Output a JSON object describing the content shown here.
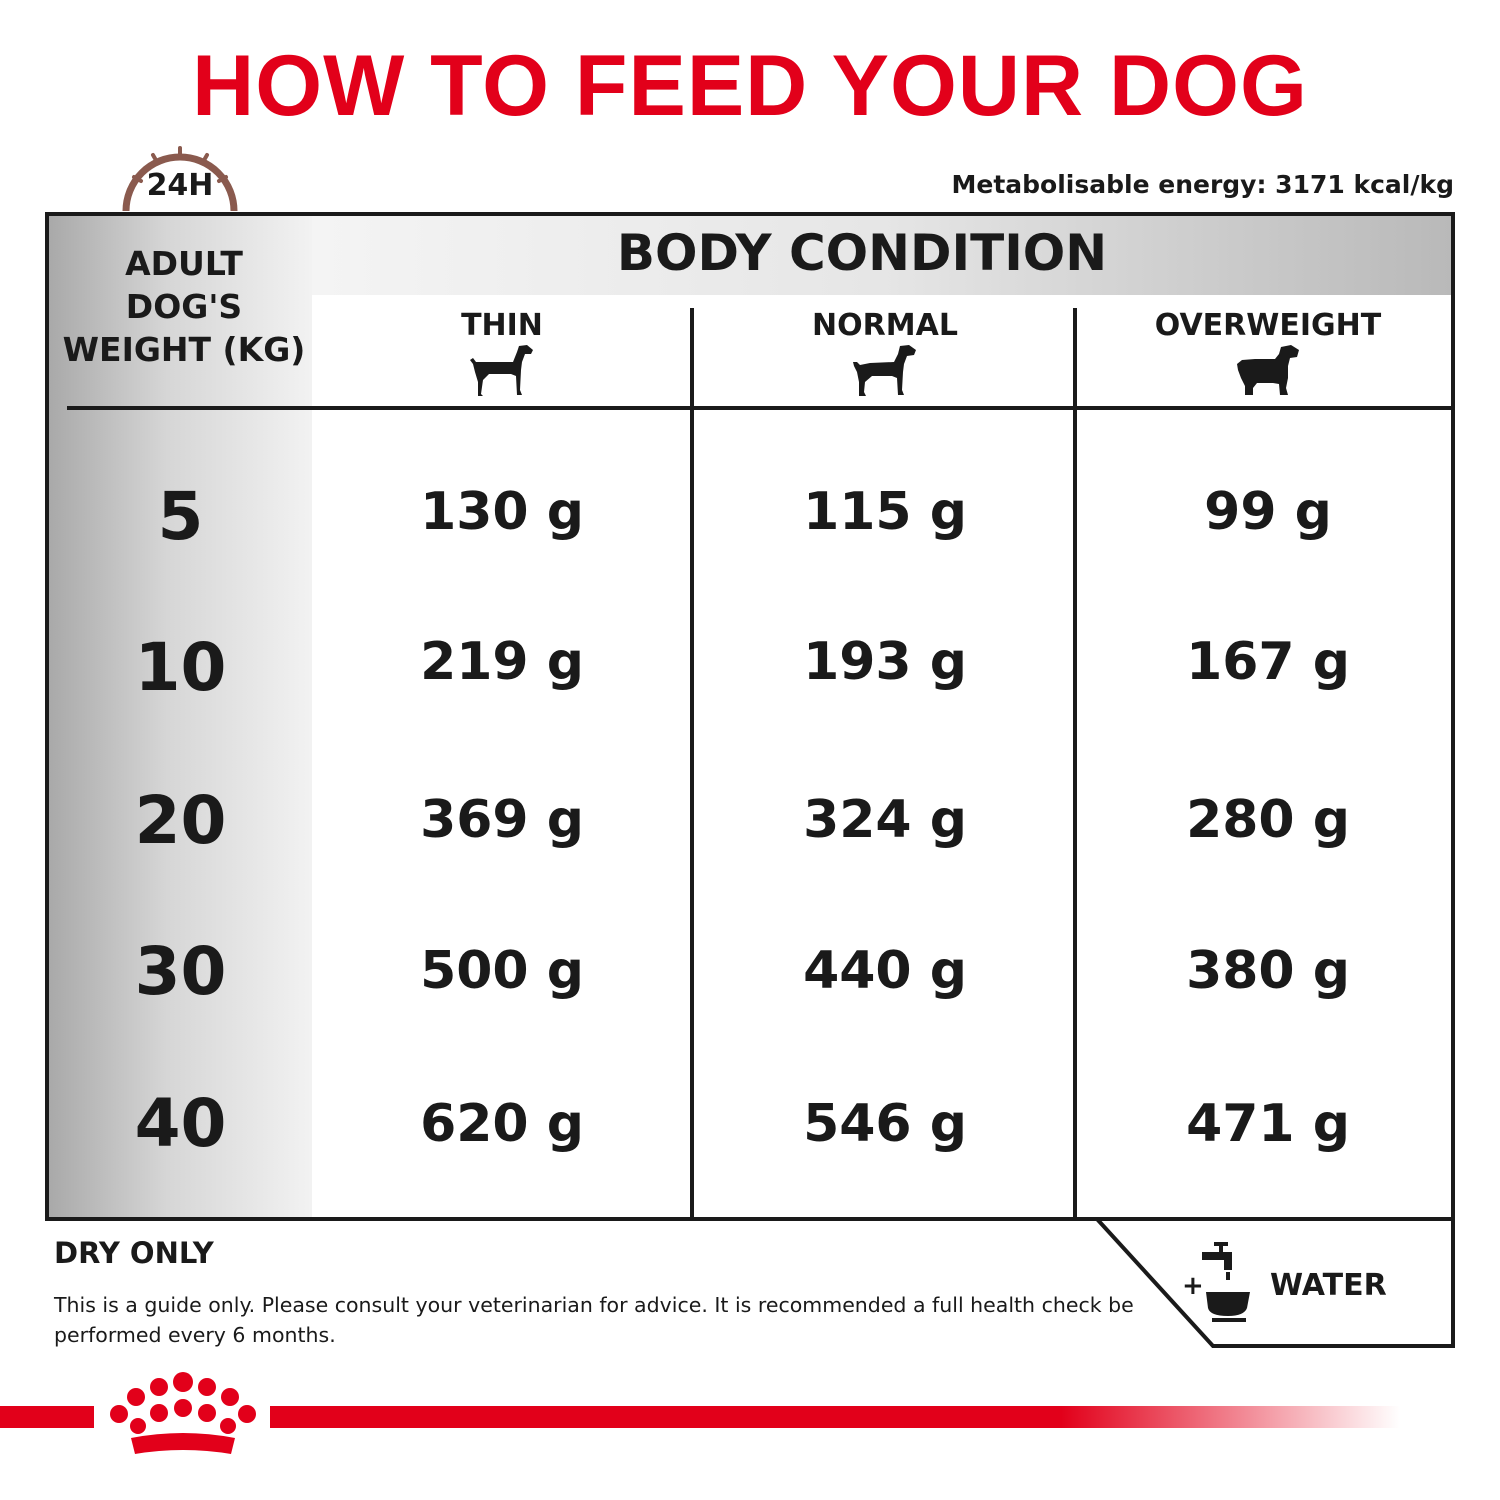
{
  "title": "HOW TO FEED YOUR DOG",
  "clock_label": "24H",
  "energy": "Metabolisable energy: 3171 kcal/kg",
  "table": {
    "weight_header": [
      "ADULT",
      "DOG'S",
      "WEIGHT (KG)"
    ],
    "group_header": "BODY CONDITION",
    "conditions": [
      {
        "label": "THIN",
        "icon": "thin-dog-icon"
      },
      {
        "label": "NORMAL",
        "icon": "normal-dog-icon"
      },
      {
        "label": "OVERWEIGHT",
        "icon": "overweight-dog-icon"
      }
    ],
    "rows": [
      {
        "weight": "5",
        "values": [
          "130 g",
          "115 g",
          "99 g"
        ]
      },
      {
        "weight": "10",
        "values": [
          "219 g",
          "193 g",
          "167 g"
        ]
      },
      {
        "weight": "20",
        "values": [
          "369 g",
          "324 g",
          "280 g"
        ]
      },
      {
        "weight": "30",
        "values": [
          "500 g",
          "440 g",
          "380 g"
        ]
      },
      {
        "weight": "40",
        "values": [
          "620 g",
          "546 g",
          "471 g"
        ]
      }
    ]
  },
  "footer": {
    "dry_only": "DRY ONLY",
    "disclaimer": "This is a guide only. Please consult your veterinarian for advice. It is recommended a full health check be performed every 6 months.",
    "water_plus": "+",
    "water_label": "WATER"
  },
  "colors": {
    "brand_red": "#e2001a",
    "clock_brown": "#8a5a4e",
    "text": "#1a1a1a"
  }
}
